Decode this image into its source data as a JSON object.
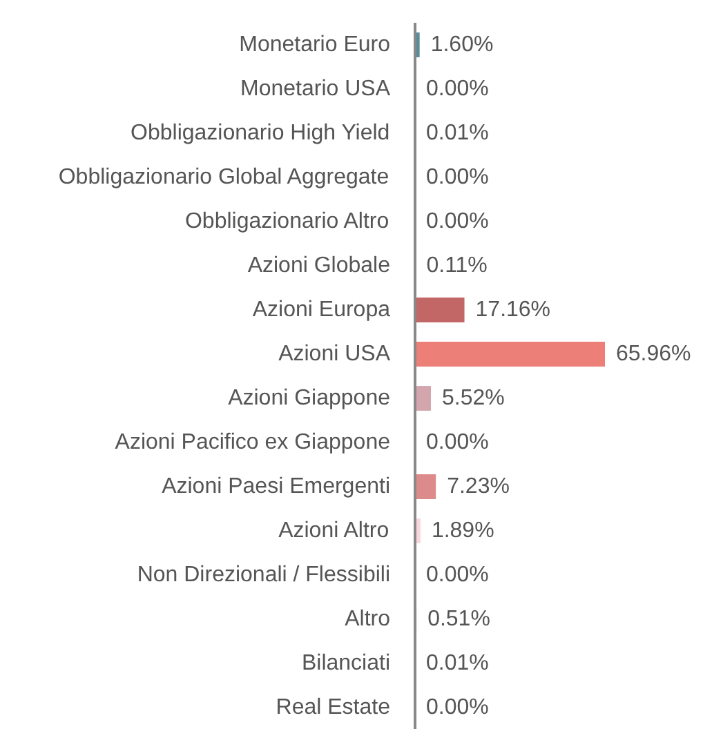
{
  "chart_data": {
    "type": "bar",
    "orientation": "horizontal",
    "categories": [
      "Monetario Euro",
      "Monetario USA",
      "Obbligazionario High Yield",
      "Obbligazionario Global Aggregate",
      "Obbligazionario Altro",
      "Azioni Globale",
      "Azioni Europa",
      "Azioni USA",
      "Azioni Giappone",
      "Azioni Pacifico ex Giappone",
      "Azioni Paesi Emergenti",
      "Azioni Altro",
      "Non Direzionali / Flessibili",
      "Altro",
      "Bilanciati",
      "Real Estate"
    ],
    "values": [
      1.6,
      0.0,
      0.01,
      0.0,
      0.0,
      0.11,
      17.16,
      65.96,
      5.52,
      0.0,
      7.23,
      1.89,
      0.0,
      0.51,
      0.01,
      0.0
    ],
    "colors": [
      "#5a8b99",
      "#5a8b99",
      "#5a8b99",
      "#5a8b99",
      "#5a8b99",
      "#c26666",
      "#c26666",
      "#ec8079",
      "#d3a5ad",
      "#d3a5ad",
      "#dd8a8a",
      "#f8d7de",
      "#c9a0a8",
      "#c9a0a8",
      "#c9a0a8",
      "#c9a0a8"
    ],
    "value_labels": [
      "1.60%",
      "0.00%",
      "0.01%",
      "0.00%",
      "0.00%",
      "0.11%",
      "17.16%",
      "65.96%",
      "5.52%",
      "0.00%",
      "7.23%",
      "1.89%",
      "0.00%",
      "0.51%",
      "0.01%",
      "0.00%"
    ],
    "grid": false
  }
}
